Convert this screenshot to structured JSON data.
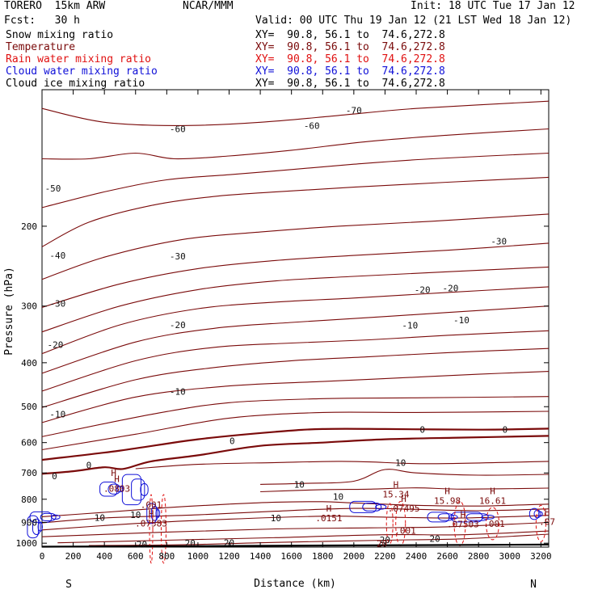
{
  "header": {
    "model": "TORERO  15km ARW",
    "center": "NCAR/MMM",
    "init": "Init: 18 UTC Tue 17 Jan 12",
    "fcst": "Fcst:   30 h",
    "valid": "Valid: 00 UTC Thu 19 Jan 12 (21 LST Wed 18 Jan 12)"
  },
  "fields": [
    {
      "name": "Snow mixing ratio",
      "xy": "XY=  90.8, 56.1 to  74.6,272.8",
      "color": "#000000"
    },
    {
      "name": "Temperature",
      "xy": "XY=  90.8, 56.1 to  74.6,272.8",
      "color": "#7a0a0a"
    },
    {
      "name": "Rain water mixing ratio",
      "xy": "XY=  90.8, 56.1 to  74.6,272.8",
      "color": "#e01010"
    },
    {
      "name": "Cloud water mixing ratio",
      "xy": "XY=  90.8, 56.1 to  74.6,272.8",
      "color": "#1010d8"
    },
    {
      "name": "Cloud ice mixing ratio",
      "xy": "XY=  90.8, 56.1 to  74.6,272.8",
      "color": "#000000"
    }
  ],
  "chart_data": {
    "type": "line",
    "xlabel": "Distance (km)",
    "ylabel": "Pressure (hPa)",
    "xlim": [
      0,
      3250
    ],
    "ylim": [
      1020,
      100
    ],
    "x_ticks": [
      0,
      200,
      400,
      600,
      800,
      1000,
      1200,
      1400,
      1600,
      1800,
      2000,
      2200,
      2400,
      2600,
      2800,
      3000,
      3200
    ],
    "y_ticks": [
      200,
      300,
      400,
      500,
      600,
      700,
      800,
      900,
      1000
    ],
    "left_end_label": "S",
    "right_end_label": "N",
    "colors": {
      "temperature": "#7a0a0a",
      "cloud_water": "#1010d8",
      "rain": "#e01010",
      "ground": "#000000"
    },
    "temperature_contours": [
      {
        "temp": -60,
        "points": [
          [
            0,
            110
          ],
          [
            400,
            118
          ],
          [
            900,
            120
          ],
          [
            1400,
            118
          ],
          [
            1900,
            114
          ],
          [
            2400,
            110
          ],
          [
            3250,
            106
          ]
        ]
      },
      {
        "temp": -60,
        "points": [
          [
            0,
            142
          ],
          [
            300,
            142
          ],
          [
            600,
            138
          ],
          [
            850,
            142
          ],
          [
            1200,
            140
          ],
          [
            1600,
            136
          ],
          [
            2100,
            130
          ],
          [
            2600,
            126
          ],
          [
            3250,
            122
          ]
        ]
      },
      {
        "temp": -60,
        "points": [
          [
            0,
            182
          ],
          [
            400,
            168
          ],
          [
            800,
            158
          ],
          [
            1200,
            154
          ],
          [
            1600,
            150
          ],
          [
            2000,
            146
          ],
          [
            2500,
            142
          ],
          [
            3250,
            138
          ]
        ]
      },
      {
        "temp": -50,
        "points": [
          [
            0,
            222
          ],
          [
            300,
            196
          ],
          [
            700,
            180
          ],
          [
            1100,
            172
          ],
          [
            1500,
            168
          ],
          [
            2000,
            164
          ],
          [
            2600,
            160
          ],
          [
            3250,
            156
          ]
        ]
      },
      {
        "temp": -50,
        "points": [
          [
            0,
            262
          ],
          [
            400,
            234
          ],
          [
            900,
            214
          ],
          [
            1400,
            206
          ],
          [
            1900,
            200
          ],
          [
            2500,
            195
          ],
          [
            3250,
            188
          ]
        ]
      },
      {
        "temp": -40,
        "points": [
          [
            0,
            302
          ],
          [
            500,
            268
          ],
          [
            1000,
            248
          ],
          [
            1500,
            238
          ],
          [
            2000,
            232
          ],
          [
            2600,
            226
          ],
          [
            3250,
            218
          ]
        ]
      },
      {
        "temp": -30,
        "points": [
          [
            0,
            342
          ],
          [
            500,
            300
          ],
          [
            1000,
            276
          ],
          [
            1500,
            264
          ],
          [
            2000,
            258
          ],
          [
            2600,
            252
          ],
          [
            3250,
            246
          ]
        ]
      },
      {
        "temp": -30,
        "points": [
          [
            0,
            382
          ],
          [
            500,
            330
          ],
          [
            1000,
            304
          ],
          [
            1500,
            294
          ],
          [
            2000,
            288
          ],
          [
            2600,
            280
          ],
          [
            3250,
            272
          ]
        ]
      },
      {
        "temp": -20,
        "points": [
          [
            0,
            422
          ],
          [
            600,
            360
          ],
          [
            1100,
            336
          ],
          [
            1600,
            326
          ],
          [
            2100,
            318
          ],
          [
            2600,
            310
          ],
          [
            3250,
            300
          ]
        ]
      },
      {
        "temp": -20,
        "points": [
          [
            0,
            462
          ],
          [
            600,
            396
          ],
          [
            1100,
            370
          ],
          [
            1600,
            362
          ],
          [
            2100,
            356
          ],
          [
            2600,
            348
          ],
          [
            3250,
            340
          ]
        ]
      },
      {
        "temp": -10,
        "points": [
          [
            0,
            502
          ],
          [
            600,
            436
          ],
          [
            1100,
            410
          ],
          [
            1600,
            396
          ],
          [
            2100,
            388
          ],
          [
            2600,
            380
          ],
          [
            3250,
            372
          ]
        ]
      },
      {
        "temp": -10,
        "points": [
          [
            0,
            542
          ],
          [
            600,
            476
          ],
          [
            1200,
            450
          ],
          [
            1800,
            440
          ],
          [
            2300,
            432
          ],
          [
            2800,
            424
          ],
          [
            3250,
            418
          ]
        ]
      },
      {
        "temp": -10,
        "points": [
          [
            0,
            582
          ],
          [
            700,
            520
          ],
          [
            1200,
            490
          ],
          [
            1800,
            480
          ],
          [
            2400,
            478
          ],
          [
            3250,
            475
          ]
        ]
      },
      {
        "temp": -10,
        "points": [
          [
            0,
            622
          ],
          [
            600,
            575
          ],
          [
            1200,
            530
          ],
          [
            1800,
            515
          ],
          [
            2400,
            515
          ],
          [
            3250,
            512
          ]
        ]
      },
      {
        "temp": 0,
        "points": [
          [
            0,
            655
          ],
          [
            500,
            625
          ],
          [
            1000,
            590
          ],
          [
            1500,
            568
          ],
          [
            1800,
            560
          ],
          [
            2200,
            560
          ],
          [
            2800,
            562
          ],
          [
            3250,
            559
          ]
        ]
      },
      {
        "temp": 0,
        "points": [
          [
            0,
            703
          ],
          [
            200,
            694
          ],
          [
            400,
            680
          ],
          [
            520,
            686
          ],
          [
            700,
            660
          ],
          [
            1000,
            640
          ],
          [
            1400,
            610
          ],
          [
            1800,
            600
          ],
          [
            2200,
            590
          ],
          [
            2700,
            585
          ],
          [
            3250,
            580
          ]
        ]
      },
      {
        "temp": 10,
        "points": [
          [
            600,
            685
          ],
          [
            1000,
            670
          ],
          [
            1500,
            664
          ],
          [
            1900,
            660
          ],
          [
            2100,
            662
          ],
          [
            2500,
            668
          ],
          [
            3250,
            660
          ]
        ]
      },
      {
        "temp": 10,
        "points": [
          [
            1400,
            742
          ],
          [
            1700,
            738
          ],
          [
            2000,
            730
          ],
          [
            2200,
            688
          ],
          [
            2400,
            700
          ],
          [
            2800,
            708
          ],
          [
            3250,
            705
          ]
        ]
      },
      {
        "temp": 10,
        "points": [
          [
            1400,
            770
          ],
          [
            1800,
            762
          ],
          [
            2100,
            760
          ],
          [
            2400,
            755
          ],
          [
            2700,
            760
          ],
          [
            3250,
            756
          ]
        ]
      },
      {
        "temp": 10,
        "points": [
          [
            0,
            874
          ],
          [
            400,
            855
          ],
          [
            800,
            835
          ],
          [
            1200,
            820
          ],
          [
            1500,
            812
          ],
          [
            1800,
            810
          ],
          [
            2000,
            815
          ],
          [
            2400,
            825
          ],
          [
            2800,
            828
          ],
          [
            3250,
            820
          ]
        ]
      },
      {
        "temp": 10,
        "points": [
          [
            0,
            902
          ],
          [
            400,
            880
          ],
          [
            1000,
            866
          ],
          [
            1500,
            850
          ],
          [
            2000,
            838
          ],
          [
            2400,
            842
          ],
          [
            2800,
            848
          ],
          [
            3250,
            840
          ]
        ]
      },
      {
        "temp": 10,
        "points": [
          [
            0,
            935
          ],
          [
            600,
            905
          ],
          [
            1200,
            885
          ],
          [
            1800,
            872
          ],
          [
            2200,
            876
          ],
          [
            2700,
            880
          ],
          [
            3250,
            868
          ]
        ]
      },
      {
        "temp": 20,
        "points": [
          [
            0,
            968
          ],
          [
            800,
            945
          ],
          [
            1500,
            930
          ],
          [
            2100,
            925
          ],
          [
            2600,
            920
          ],
          [
            3250,
            900
          ]
        ]
      },
      {
        "temp": 20,
        "points": [
          [
            100,
            998
          ],
          [
            800,
            985
          ],
          [
            1500,
            972
          ],
          [
            2200,
            958
          ],
          [
            2700,
            958
          ],
          [
            3250,
            940
          ]
        ]
      },
      {
        "temp": 20,
        "points": [
          [
            300,
            1012
          ],
          [
            900,
            1008
          ],
          [
            1500,
            996
          ],
          [
            2200,
            985
          ],
          [
            2700,
            978
          ],
          [
            3250,
            955
          ]
        ]
      }
    ],
    "contour_labels": [
      {
        "x": 870,
        "p": 122,
        "text": "-60"
      },
      {
        "x": 1730,
        "p": 120,
        "text": "-60"
      },
      {
        "x": 2000,
        "p": 111,
        "text": "-70"
      },
      {
        "x": 70,
        "p": 165,
        "text": "-50"
      },
      {
        "x": 100,
        "p": 232,
        "text": "-40"
      },
      {
        "x": 100,
        "p": 296,
        "text": "-30"
      },
      {
        "x": 870,
        "p": 233,
        "text": "-30"
      },
      {
        "x": 2930,
        "p": 216,
        "text": "-30"
      },
      {
        "x": 2440,
        "p": 276,
        "text": "-20"
      },
      {
        "x": 2620,
        "p": 274,
        "text": "-20"
      },
      {
        "x": 85,
        "p": 365,
        "text": "-20"
      },
      {
        "x": 870,
        "p": 330,
        "text": "-20"
      },
      {
        "x": 2360,
        "p": 331,
        "text": "-10"
      },
      {
        "x": 2690,
        "p": 322,
        "text": "-10"
      },
      {
        "x": 870,
        "p": 463,
        "text": "-10"
      },
      {
        "x": 100,
        "p": 519,
        "text": "-10"
      },
      {
        "x": 2440,
        "p": 561,
        "text": "0"
      },
      {
        "x": 2970,
        "p": 561,
        "text": "0"
      },
      {
        "x": 1220,
        "p": 595,
        "text": "0"
      },
      {
        "x": 80,
        "p": 711,
        "text": "0"
      },
      {
        "x": 300,
        "p": 673,
        "text": "0"
      },
      {
        "x": 2300,
        "p": 665,
        "text": "10"
      },
      {
        "x": 1650,
        "p": 742,
        "text": "10"
      },
      {
        "x": 1900,
        "p": 790,
        "text": "10"
      },
      {
        "x": 600,
        "p": 866,
        "text": "10"
      },
      {
        "x": 370,
        "p": 878,
        "text": "10"
      },
      {
        "x": 1500,
        "p": 880,
        "text": "10"
      },
      {
        "x": 1200,
        "p": 998,
        "text": "20"
      },
      {
        "x": 950,
        "p": 1000,
        "text": "20"
      },
      {
        "x": 640,
        "p": 1005,
        "text": "20"
      },
      {
        "x": 2200,
        "p": 983,
        "text": "20"
      },
      {
        "x": 2520,
        "p": 977,
        "text": "20"
      }
    ],
    "cloud_water_features": [
      {
        "x": 550,
        "p": 760,
        "w": 110,
        "h": 70
      },
      {
        "x": 710,
        "p": 762,
        "w": 120,
        "h": 150
      },
      {
        "x": 770,
        "p": 860,
        "w": 60,
        "h": 100
      },
      {
        "x": 150,
        "p": 876,
        "w": 140,
        "h": 52
      },
      {
        "x": 20,
        "p": 920,
        "w": 70,
        "h": 110
      },
      {
        "x": 2250,
        "p": 832,
        "w": 170,
        "h": 56
      },
      {
        "x": 2700,
        "p": 876,
        "w": 140,
        "h": 48
      },
      {
        "x": 2950,
        "p": 876,
        "w": 200,
        "h": 48
      },
      {
        "x": 3225,
        "p": 862,
        "w": 60,
        "h": 55
      }
    ],
    "rain_features": [
      {
        "x": 700,
        "p": 930,
        "w": 20,
        "h": 170
      },
      {
        "x": 780,
        "p": 930,
        "w": 30,
        "h": 170
      },
      {
        "x": 2230,
        "p": 905,
        "w": 40,
        "h": 100
      },
      {
        "x": 2300,
        "p": 905,
        "w": 60,
        "h": 110
      },
      {
        "x": 2680,
        "p": 905,
        "w": 70,
        "h": 110
      },
      {
        "x": 2890,
        "p": 905,
        "w": 80,
        "h": 80
      },
      {
        "x": 3200,
        "p": 905,
        "w": 60,
        "h": 90
      }
    ],
    "highs": [
      {
        "x": 460,
        "p": 711,
        "label": ""
      },
      {
        "x": 480,
        "p": 733,
        "label": ".0803"
      },
      {
        "x": 700,
        "p": 874,
        "label": ".07583"
      },
      {
        "x": 2270,
        "p": 754,
        "label": "15.34"
      },
      {
        "x": 2320,
        "p": 810,
        "label": ".07495"
      },
      {
        "x": 2600,
        "p": 780,
        "label": "15.98"
      },
      {
        "x": 2890,
        "p": 780,
        "label": "16.61"
      },
      {
        "x": 1840,
        "p": 852,
        "label": ".0151"
      },
      {
        "x": 2700,
        "p": 878,
        "label": ".07503"
      },
      {
        "x": 3240,
        "p": 868,
        "label": ".07"
      }
    ],
    "value_labels": [
      {
        "x": 700,
        "p": 823,
        "text": ".001",
        "color": "#7a0a0a"
      },
      {
        "x": 2900,
        "p": 905,
        "text": ".001",
        "color": "#7a0a0a"
      },
      {
        "x": 2330,
        "p": 937,
        "text": ".001",
        "color": "#7a0a0a"
      },
      {
        "x": 2180,
        "p": 1002,
        "text": "20",
        "color": "#7a0a0a"
      }
    ]
  }
}
